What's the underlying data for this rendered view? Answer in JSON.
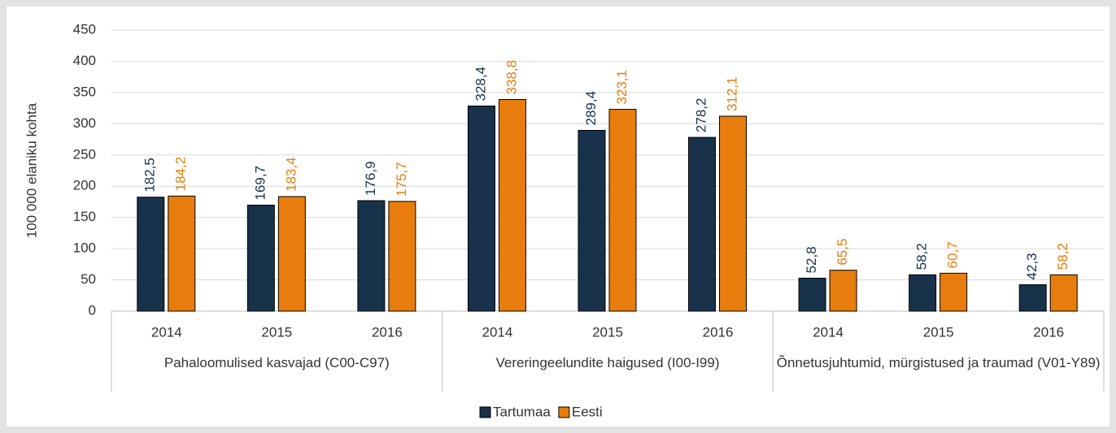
{
  "chart_data": {
    "type": "bar",
    "y_axis_label": "100 000 elaniku kohta",
    "categories": [
      "2014",
      "2015",
      "2016",
      "2014",
      "2015",
      "2016",
      "2014",
      "2015",
      "2016"
    ],
    "groups": [
      "Pahaloomulised kasvajad (C00-C97)",
      "Vereringeelundite haigused (I00-I99)",
      "Õnnetusjuhtumid, mürgistused ja traumad (V01-Y89)"
    ],
    "series": [
      {
        "name": "Tartumaa",
        "color": "#17324a",
        "values": [
          182.5,
          169.7,
          176.9,
          328.4,
          289.4,
          278.2,
          52.8,
          58.2,
          42.3
        ],
        "value_labels": [
          "182,5",
          "169,7",
          "176,9",
          "328,4",
          "289,4",
          "278,2",
          "52,8",
          "58,2",
          "42,3"
        ]
      },
      {
        "name": "Eesti",
        "color": "#e87d0d",
        "values": [
          184.2,
          183.4,
          175.7,
          338.8,
          323.1,
          312.1,
          65.5,
          60.7,
          58.2
        ],
        "value_labels": [
          "184,2",
          "183,4",
          "175,7",
          "338,8",
          "323,1",
          "312,1",
          "65,5",
          "60,7",
          "58,2"
        ]
      }
    ],
    "ylim": [
      0,
      450
    ],
    "yticks": [
      0,
      50,
      100,
      150,
      200,
      250,
      300,
      350,
      400,
      450
    ],
    "grid": true,
    "legend": "bottom"
  }
}
